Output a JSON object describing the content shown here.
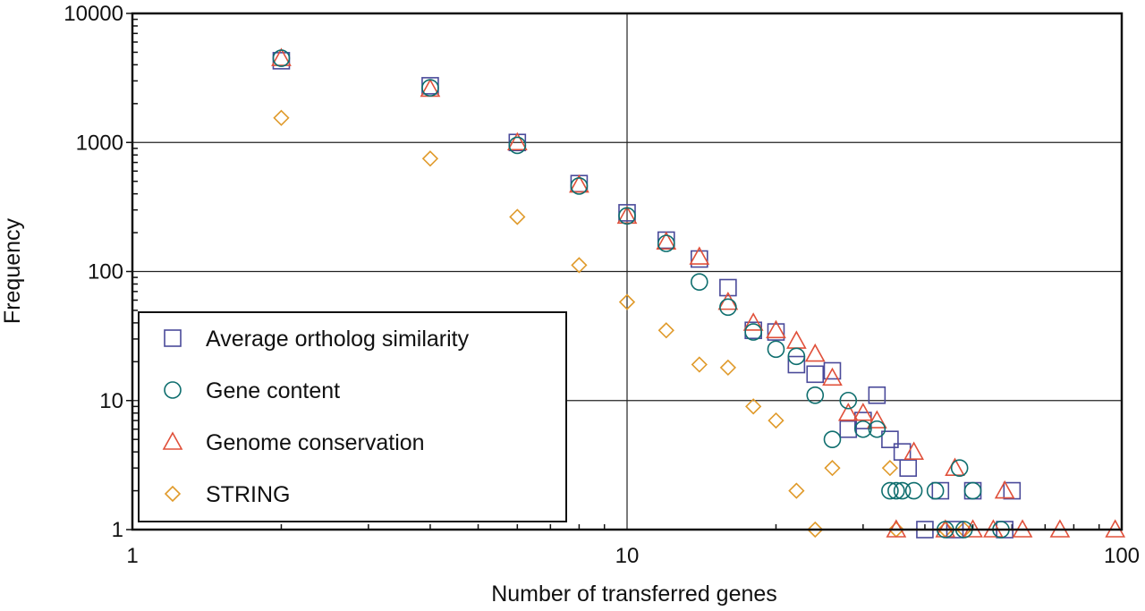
{
  "chart_data": {
    "type": "scatter",
    "xlabel": "Number of transferred genes",
    "ylabel": "Frequency",
    "xscale": "log",
    "yscale": "log",
    "xlim": [
      1,
      100
    ],
    "ylim": [
      1,
      10000
    ],
    "x_ticks": [
      "1",
      "10",
      "100"
    ],
    "y_ticks": [
      "1",
      "10",
      "100",
      "1000",
      "10000"
    ],
    "grid": true,
    "legend_position": "bottom-left",
    "series": [
      {
        "name": "Average ortholog similarity",
        "marker": "square",
        "color": "#4a4a9a",
        "points": [
          [
            2,
            4300
          ],
          [
            4,
            2750
          ],
          [
            6,
            1000
          ],
          [
            8,
            480
          ],
          [
            10,
            285
          ],
          [
            12,
            175
          ],
          [
            14,
            125
          ],
          [
            16,
            75
          ],
          [
            18,
            35
          ],
          [
            20,
            34
          ],
          [
            22,
            19
          ],
          [
            24,
            16
          ],
          [
            26,
            17
          ],
          [
            28,
            6
          ],
          [
            30,
            7
          ],
          [
            32,
            11
          ],
          [
            34,
            5
          ],
          [
            36,
            4
          ],
          [
            37,
            3
          ],
          [
            40,
            1
          ],
          [
            43,
            2
          ],
          [
            46,
            1
          ],
          [
            50,
            2
          ],
          [
            58,
            1
          ],
          [
            60,
            2
          ]
        ]
      },
      {
        "name": "Gene content",
        "marker": "circle",
        "color": "#0e6e6e",
        "points": [
          [
            2,
            4500
          ],
          [
            4,
            2650
          ],
          [
            6,
            950
          ],
          [
            8,
            460
          ],
          [
            10,
            270
          ],
          [
            12,
            165
          ],
          [
            14,
            83
          ],
          [
            16,
            53
          ],
          [
            18,
            34
          ],
          [
            20,
            25
          ],
          [
            22,
            22
          ],
          [
            24,
            11
          ],
          [
            26,
            5
          ],
          [
            28,
            10
          ],
          [
            30,
            6
          ],
          [
            32,
            6
          ],
          [
            34,
            2
          ],
          [
            35,
            2
          ],
          [
            36,
            2
          ],
          [
            38,
            2
          ],
          [
            42,
            2
          ],
          [
            44,
            1
          ],
          [
            47,
            3
          ],
          [
            48,
            1
          ],
          [
            50,
            2
          ],
          [
            57,
            1
          ]
        ]
      },
      {
        "name": "Genome conservation",
        "marker": "triangle",
        "color": "#e0503a",
        "points": [
          [
            2,
            4500
          ],
          [
            4,
            2600
          ],
          [
            6,
            1000
          ],
          [
            8,
            470
          ],
          [
            10,
            270
          ],
          [
            12,
            170
          ],
          [
            14,
            130
          ],
          [
            16,
            58
          ],
          [
            18,
            40
          ],
          [
            20,
            35
          ],
          [
            22,
            29
          ],
          [
            24,
            23
          ],
          [
            26,
            15
          ],
          [
            28,
            8
          ],
          [
            30,
            8
          ],
          [
            32,
            7
          ],
          [
            35,
            1
          ],
          [
            38,
            4
          ],
          [
            44,
            1
          ],
          [
            46,
            3
          ],
          [
            50,
            1
          ],
          [
            55,
            1
          ],
          [
            58,
            2
          ],
          [
            63,
            1
          ],
          [
            75,
            1
          ],
          [
            97,
            1
          ]
        ]
      },
      {
        "name": "STRING",
        "marker": "diamond",
        "color": "#e09a2a",
        "points": [
          [
            2,
            1550
          ],
          [
            4,
            750
          ],
          [
            6,
            265
          ],
          [
            8,
            112
          ],
          [
            10,
            58
          ],
          [
            12,
            35
          ],
          [
            14,
            19
          ],
          [
            16,
            18
          ],
          [
            18,
            9
          ],
          [
            20,
            7
          ],
          [
            22,
            2
          ],
          [
            24,
            1
          ],
          [
            26,
            3
          ],
          [
            34,
            3
          ],
          [
            35,
            1
          ],
          [
            44,
            1
          ],
          [
            48,
            1
          ]
        ]
      }
    ]
  }
}
